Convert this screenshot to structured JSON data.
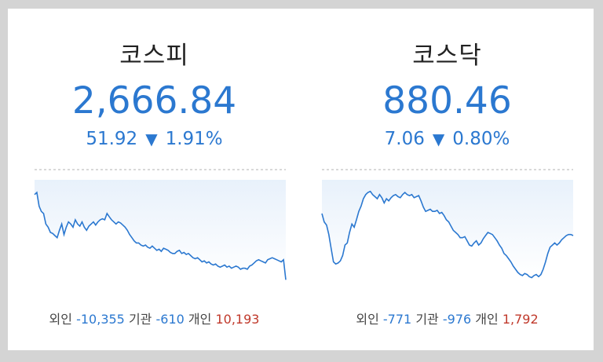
{
  "colors": {
    "down": "#2b78d0",
    "up": "#c0392b",
    "chart_fill_top": "#e8f1fb",
    "chart_fill_bottom": "#ffffff",
    "dashed_line": "#b0b0b0"
  },
  "kospi": {
    "title": "코스피",
    "value": "2,666.84",
    "change": "51.92",
    "direction": "down",
    "percent": "1.91%",
    "investors": {
      "foreign_label": "외인",
      "foreign_value": "-10,355",
      "institution_label": "기관",
      "institution_value": "-610",
      "individual_label": "개인",
      "individual_value": "10,193"
    },
    "chart_data": {
      "type": "line",
      "ylim": [
        0,
        100
      ],
      "values": [
        86,
        88,
        75,
        70,
        68,
        58,
        55,
        50,
        49,
        47,
        45,
        52,
        58,
        48,
        55,
        60,
        58,
        55,
        62,
        58,
        56,
        60,
        55,
        52,
        56,
        58,
        60,
        57,
        60,
        62,
        63,
        62,
        68,
        65,
        62,
        60,
        58,
        60,
        59,
        57,
        55,
        52,
        48,
        45,
        42,
        40,
        40,
        38,
        37,
        38,
        36,
        35,
        37,
        35,
        33,
        34,
        32,
        35,
        34,
        33,
        31,
        30,
        30,
        32,
        33,
        30,
        31,
        29,
        30,
        28,
        26,
        25,
        26,
        24,
        22,
        23,
        21,
        22,
        20,
        19,
        20,
        18,
        17,
        18,
        19,
        17,
        18,
        16,
        17,
        18,
        17,
        15,
        16,
        16,
        15,
        18,
        19,
        21,
        23,
        24,
        23,
        22,
        21,
        24,
        25,
        26,
        25,
        24,
        23,
        22,
        24,
        5
      ]
    }
  },
  "kosdaq": {
    "title": "코스닥",
    "value": "880.46",
    "change": "7.06",
    "direction": "down",
    "percent": "0.80%",
    "investors": {
      "foreign_label": "외인",
      "foreign_value": "-771",
      "institution_label": "기관",
      "institution_value": "-976",
      "individual_label": "개인",
      "individual_value": "1,792"
    },
    "chart_data": {
      "type": "line",
      "ylim": [
        0,
        100
      ],
      "values": [
        68,
        60,
        57,
        48,
        35,
        22,
        20,
        21,
        23,
        28,
        38,
        40,
        50,
        58,
        55,
        62,
        70,
        75,
        82,
        86,
        88,
        89,
        86,
        84,
        82,
        86,
        83,
        78,
        82,
        80,
        83,
        85,
        86,
        84,
        83,
        86,
        88,
        86,
        85,
        86,
        83,
        84,
        85,
        80,
        74,
        70,
        71,
        72,
        70,
        70,
        71,
        68,
        69,
        66,
        62,
        60,
        56,
        52,
        50,
        48,
        45,
        45,
        46,
        42,
        38,
        37,
        40,
        42,
        38,
        40,
        44,
        47,
        50,
        49,
        48,
        45,
        42,
        38,
        35,
        30,
        28,
        25,
        22,
        18,
        15,
        12,
        10,
        9,
        11,
        10,
        8,
        7,
        9,
        10,
        8,
        10,
        15,
        22,
        30,
        36,
        38,
        40,
        38,
        40,
        43,
        45,
        47,
        48,
        48,
        47
      ]
    }
  }
}
